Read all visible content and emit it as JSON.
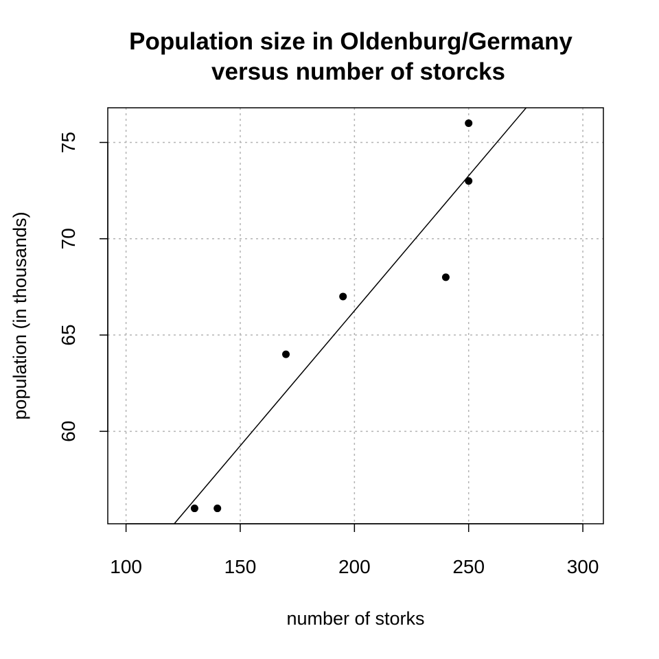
{
  "chart_data": {
    "type": "scatter",
    "title_line1": "Population size in Oldenburg/Germany",
    "title_line2": "versus number of storcks",
    "xlabel": "number of storks",
    "ylabel": "population (in thousands)",
    "xlim": [
      92,
      309
    ],
    "ylim": [
      55.2,
      76.8
    ],
    "xticks": [
      100,
      150,
      200,
      250,
      300
    ],
    "xtick_labels": [
      "100",
      "150",
      "200",
      "250",
      "300"
    ],
    "yticks": [
      60,
      65,
      70,
      75
    ],
    "ytick_labels": [
      "60",
      "65",
      "70",
      "75"
    ],
    "grid": true,
    "points": [
      {
        "x": 130,
        "y": 56
      },
      {
        "x": 140,
        "y": 56
      },
      {
        "x": 170,
        "y": 64
      },
      {
        "x": 195,
        "y": 67
      },
      {
        "x": 240,
        "y": 68
      },
      {
        "x": 250,
        "y": 73
      },
      {
        "x": 250,
        "y": 76
      }
    ],
    "regression_line": {
      "intercept": 38.22,
      "slope": 0.1402
    }
  }
}
